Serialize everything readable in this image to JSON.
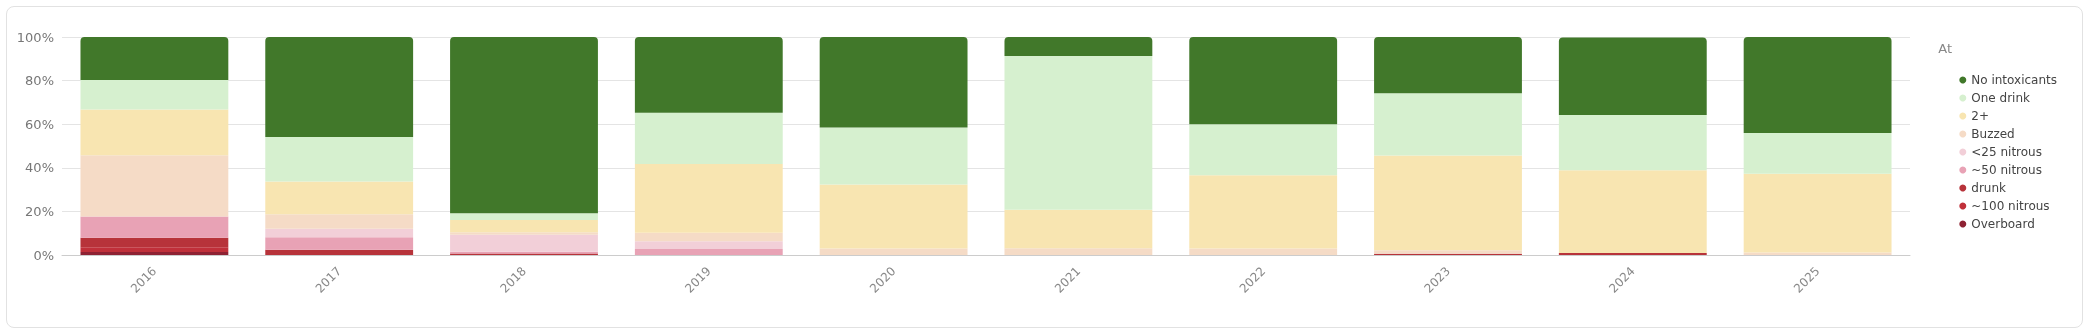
{
  "chart_data": {
    "type": "bar",
    "stacked": true,
    "legend_title": "At",
    "legend": "right",
    "grid": "y",
    "categories": [
      "2016",
      "2017",
      "2018",
      "2019",
      "2020",
      "2021",
      "2022",
      "2023",
      "2024",
      "2025"
    ],
    "ylim": [
      0,
      100
    ],
    "yticks": [
      {
        "value": 0,
        "label": "0%"
      },
      {
        "value": 20,
        "label": "20%"
      },
      {
        "value": 40,
        "label": "40%"
      },
      {
        "value": 60,
        "label": "60%"
      },
      {
        "value": 80,
        "label": "80%"
      },
      {
        "value": 100,
        "label": "100%"
      }
    ],
    "series": [
      {
        "name": "Overboard",
        "color": "#8e2233",
        "values": [
          1.4,
          null,
          null,
          null,
          null,
          null,
          null,
          null,
          null,
          null
        ]
      },
      {
        "name": "~100 nitrous",
        "color": "#c0303a",
        "values": [
          2.1,
          null,
          null,
          null,
          null,
          null,
          null,
          null,
          null,
          null
        ]
      },
      {
        "name": "drunk",
        "color": "#b7333a",
        "values": [
          4.4,
          2.4,
          0.7,
          null,
          null,
          null,
          null,
          0.6,
          0.9,
          null
        ]
      },
      {
        "name": "~50 nitrous",
        "color": "#e8a2b5",
        "values": [
          9.8,
          5.7,
          0.8,
          2.8,
          null,
          null,
          null,
          null,
          null,
          null
        ]
      },
      {
        "name": "<25 nitrous",
        "color": "#f2cfd8",
        "values": [
          null,
          3.9,
          7.8,
          3.5,
          null,
          null,
          null,
          null,
          null,
          null
        ]
      },
      {
        "name": "Buzzed",
        "color": "#f5dbc6",
        "values": [
          28,
          6.7,
          1.1,
          3.9,
          3.0,
          3.1,
          3.0,
          1.6,
          null,
          1.1
        ]
      },
      {
        "name": "2+",
        "color": "#f8e5b1",
        "values": [
          21,
          15,
          5.7,
          31.5,
          29.3,
          17.6,
          33.6,
          43.4,
          38,
          36.2
        ]
      },
      {
        "name": "One drink",
        "color": "#d6f0cf",
        "values": [
          13.6,
          20.4,
          3,
          23.5,
          26.2,
          70.6,
          23.4,
          28.6,
          25.3,
          18.7
        ]
      },
      {
        "name": "No intoxicants",
        "color": "#41782a",
        "values": [
          19.7,
          45.9,
          80.9,
          34.8,
          41.5,
          8.7,
          40,
          25.8,
          35.6,
          44
        ]
      }
    ]
  }
}
